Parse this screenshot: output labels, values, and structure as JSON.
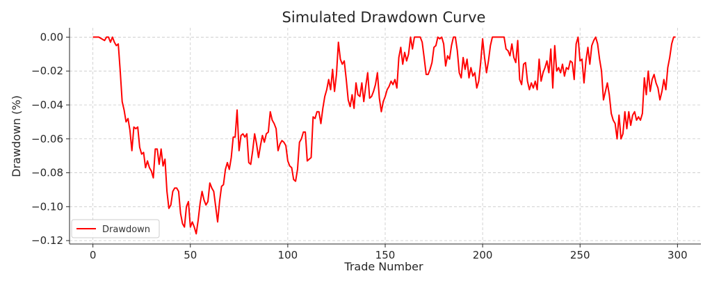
{
  "chart_data": {
    "type": "line",
    "title": "Simulated Drawdown Curve",
    "xlabel": "Trade Number",
    "ylabel": "Drawdown (%)",
    "xlim": [
      -12,
      312
    ],
    "ylim": [
      -0.122,
      0.0055
    ],
    "x_ticks": [
      0,
      50,
      100,
      150,
      200,
      250,
      300
    ],
    "x_tick_labels": [
      "0",
      "50",
      "100",
      "150",
      "200",
      "250",
      "300"
    ],
    "y_ticks": [
      0,
      -0.02,
      -0.04,
      -0.06,
      -0.08,
      -0.1,
      -0.12
    ],
    "y_tick_labels": [
      "0.00",
      "−0.02",
      "−0.04",
      "−0.06",
      "−0.08",
      "−0.10",
      "−0.12"
    ],
    "grid": true,
    "legend": {
      "position": "lower-left",
      "entries": [
        "Drawdown"
      ]
    },
    "series": [
      {
        "name": "Drawdown",
        "color": "#ff0000",
        "points": [
          [
            0,
            0
          ],
          [
            3,
            0
          ],
          [
            6,
            -0.002
          ],
          [
            7,
            0
          ],
          [
            8,
            0
          ],
          [
            9,
            -0.003
          ],
          [
            10,
            0
          ],
          [
            11,
            -0.003
          ],
          [
            12,
            -0.005
          ],
          [
            13,
            -0.004
          ],
          [
            14,
            -0.02
          ],
          [
            15,
            -0.038
          ],
          [
            16,
            -0.043
          ],
          [
            17,
            -0.05
          ],
          [
            18,
            -0.048
          ],
          [
            19,
            -0.055
          ],
          [
            20,
            -0.067
          ],
          [
            21,
            -0.053
          ],
          [
            22,
            -0.054
          ],
          [
            23,
            -0.053
          ],
          [
            24,
            -0.065
          ],
          [
            25,
            -0.069
          ],
          [
            26,
            -0.068
          ],
          [
            27,
            -0.077
          ],
          [
            28,
            -0.073
          ],
          [
            29,
            -0.077
          ],
          [
            30,
            -0.079
          ],
          [
            31,
            -0.083
          ],
          [
            32,
            -0.066
          ],
          [
            33,
            -0.066
          ],
          [
            34,
            -0.075
          ],
          [
            35,
            -0.066
          ],
          [
            36,
            -0.076
          ],
          [
            37,
            -0.072
          ],
          [
            38,
            -0.091
          ],
          [
            39,
            -0.101
          ],
          [
            40,
            -0.099
          ],
          [
            41,
            -0.091
          ],
          [
            42,
            -0.089
          ],
          [
            43,
            -0.089
          ],
          [
            44,
            -0.091
          ],
          [
            45,
            -0.104
          ],
          [
            46,
            -0.11
          ],
          [
            47,
            -0.112
          ],
          [
            48,
            -0.1
          ],
          [
            49,
            -0.097
          ],
          [
            50,
            -0.112
          ],
          [
            51,
            -0.109
          ],
          [
            52,
            -0.112
          ],
          [
            53,
            -0.116
          ],
          [
            54,
            -0.108
          ],
          [
            55,
            -0.098
          ],
          [
            56,
            -0.091
          ],
          [
            57,
            -0.096
          ],
          [
            58,
            -0.099
          ],
          [
            59,
            -0.097
          ],
          [
            60,
            -0.086
          ],
          [
            61,
            -0.089
          ],
          [
            62,
            -0.091
          ],
          [
            63,
            -0.1
          ],
          [
            64,
            -0.109
          ],
          [
            65,
            -0.097
          ],
          [
            66,
            -0.088
          ],
          [
            67,
            -0.087
          ],
          [
            68,
            -0.078
          ],
          [
            69,
            -0.074
          ],
          [
            70,
            -0.078
          ],
          [
            71,
            -0.071
          ],
          [
            72,
            -0.059
          ],
          [
            73,
            -0.059
          ],
          [
            74,
            -0.043
          ],
          [
            75,
            -0.067
          ],
          [
            76,
            -0.058
          ],
          [
            77,
            -0.057
          ],
          [
            78,
            -0.059
          ],
          [
            79,
            -0.057
          ],
          [
            80,
            -0.074
          ],
          [
            81,
            -0.075
          ],
          [
            82,
            -0.067
          ],
          [
            83,
            -0.057
          ],
          [
            84,
            -0.063
          ],
          [
            85,
            -0.071
          ],
          [
            86,
            -0.064
          ],
          [
            87,
            -0.058
          ],
          [
            88,
            -0.062
          ],
          [
            89,
            -0.057
          ],
          [
            90,
            -0.056
          ],
          [
            91,
            -0.044
          ],
          [
            92,
            -0.049
          ],
          [
            93,
            -0.051
          ],
          [
            94,
            -0.054
          ],
          [
            95,
            -0.067
          ],
          [
            96,
            -0.063
          ],
          [
            97,
            -0.061
          ],
          [
            98,
            -0.062
          ],
          [
            99,
            -0.064
          ],
          [
            100,
            -0.073
          ],
          [
            101,
            -0.076
          ],
          [
            102,
            -0.077
          ],
          [
            103,
            -0.084
          ],
          [
            104,
            -0.085
          ],
          [
            105,
            -0.078
          ],
          [
            106,
            -0.062
          ],
          [
            107,
            -0.06
          ],
          [
            108,
            -0.056
          ],
          [
            109,
            -0.056
          ],
          [
            110,
            -0.073
          ],
          [
            111,
            -0.072
          ],
          [
            112,
            -0.071
          ],
          [
            113,
            -0.047
          ],
          [
            114,
            -0.048
          ],
          [
            115,
            -0.044
          ],
          [
            116,
            -0.044
          ],
          [
            117,
            -0.051
          ],
          [
            118,
            -0.042
          ],
          [
            119,
            -0.035
          ],
          [
            120,
            -0.031
          ],
          [
            121,
            -0.025
          ],
          [
            122,
            -0.031
          ],
          [
            123,
            -0.019
          ],
          [
            124,
            -0.032
          ],
          [
            125,
            -0.022
          ],
          [
            126,
            -0.003
          ],
          [
            127,
            -0.013
          ],
          [
            128,
            -0.016
          ],
          [
            129,
            -0.014
          ],
          [
            130,
            -0.025
          ],
          [
            131,
            -0.037
          ],
          [
            132,
            -0.041
          ],
          [
            133,
            -0.034
          ],
          [
            134,
            -0.042
          ],
          [
            135,
            -0.027
          ],
          [
            136,
            -0.034
          ],
          [
            137,
            -0.035
          ],
          [
            138,
            -0.027
          ],
          [
            139,
            -0.038
          ],
          [
            140,
            -0.029
          ],
          [
            141,
            -0.021
          ],
          [
            142,
            -0.036
          ],
          [
            143,
            -0.035
          ],
          [
            144,
            -0.032
          ],
          [
            145,
            -0.028
          ],
          [
            146,
            -0.021
          ],
          [
            147,
            -0.036
          ],
          [
            148,
            -0.044
          ],
          [
            149,
            -0.038
          ],
          [
            150,
            -0.035
          ],
          [
            151,
            -0.031
          ],
          [
            152,
            -0.029
          ],
          [
            153,
            -0.026
          ],
          [
            154,
            -0.028
          ],
          [
            155,
            -0.025
          ],
          [
            156,
            -0.03
          ],
          [
            157,
            -0.012
          ],
          [
            158,
            -0.006
          ],
          [
            159,
            -0.016
          ],
          [
            160,
            -0.009
          ],
          [
            161,
            -0.014
          ],
          [
            162,
            -0.01
          ],
          [
            163,
            0
          ],
          [
            164,
            -0.007
          ],
          [
            165,
            0
          ],
          [
            166,
            0
          ],
          [
            167,
            0
          ],
          [
            168,
            0
          ],
          [
            169,
            -0.003
          ],
          [
            170,
            -0.012
          ],
          [
            171,
            -0.022
          ],
          [
            172,
            -0.022
          ],
          [
            173,
            -0.019
          ],
          [
            174,
            -0.015
          ],
          [
            175,
            -0.006
          ],
          [
            176,
            -0.005
          ],
          [
            177,
            0
          ],
          [
            178,
            -0.001
          ],
          [
            179,
            0
          ],
          [
            180,
            -0.004
          ],
          [
            181,
            -0.017
          ],
          [
            182,
            -0.011
          ],
          [
            183,
            -0.013
          ],
          [
            184,
            -0.005
          ],
          [
            185,
            0
          ],
          [
            186,
            0
          ],
          [
            187,
            -0.008
          ],
          [
            188,
            -0.021
          ],
          [
            189,
            -0.024
          ],
          [
            190,
            -0.012
          ],
          [
            191,
            -0.019
          ],
          [
            192,
            -0.013
          ],
          [
            193,
            -0.024
          ],
          [
            194,
            -0.018
          ],
          [
            195,
            -0.023
          ],
          [
            196,
            -0.021
          ],
          [
            197,
            -0.03
          ],
          [
            198,
            -0.026
          ],
          [
            199,
            -0.015
          ],
          [
            200,
            -0.001
          ],
          [
            201,
            -0.012
          ],
          [
            202,
            -0.021
          ],
          [
            203,
            -0.014
          ],
          [
            204,
            -0.005
          ],
          [
            205,
            0
          ],
          [
            206,
            0
          ],
          [
            207,
            0
          ],
          [
            208,
            0
          ],
          [
            209,
            0
          ],
          [
            210,
            0
          ],
          [
            211,
            0
          ],
          [
            212,
            -0.007
          ],
          [
            213,
            -0.008
          ],
          [
            214,
            -0.011
          ],
          [
            215,
            -0.004
          ],
          [
            216,
            -0.012
          ],
          [
            217,
            -0.015
          ],
          [
            218,
            -0.002
          ],
          [
            219,
            -0.025
          ],
          [
            220,
            -0.028
          ],
          [
            221,
            -0.016
          ],
          [
            222,
            -0.015
          ],
          [
            223,
            -0.026
          ],
          [
            224,
            -0.031
          ],
          [
            225,
            -0.027
          ],
          [
            226,
            -0.03
          ],
          [
            227,
            -0.026
          ],
          [
            228,
            -0.031
          ],
          [
            229,
            -0.013
          ],
          [
            230,
            -0.026
          ],
          [
            231,
            -0.021
          ],
          [
            232,
            -0.018
          ],
          [
            233,
            -0.014
          ],
          [
            234,
            -0.021
          ],
          [
            235,
            -0.007
          ],
          [
            236,
            -0.03
          ],
          [
            237,
            -0.005
          ],
          [
            238,
            -0.02
          ],
          [
            239,
            -0.018
          ],
          [
            240,
            -0.021
          ],
          [
            241,
            -0.016
          ],
          [
            242,
            -0.023
          ],
          [
            243,
            -0.018
          ],
          [
            244,
            -0.019
          ],
          [
            245,
            -0.014
          ],
          [
            246,
            -0.015
          ],
          [
            247,
            -0.025
          ],
          [
            248,
            -0.004
          ],
          [
            249,
            0
          ],
          [
            250,
            -0.014
          ],
          [
            251,
            -0.013
          ],
          [
            252,
            -0.027
          ],
          [
            253,
            -0.014
          ],
          [
            254,
            -0.006
          ],
          [
            255,
            -0.016
          ],
          [
            256,
            -0.005
          ],
          [
            257,
            -0.002
          ],
          [
            258,
            0
          ],
          [
            259,
            -0.004
          ],
          [
            260,
            -0.013
          ],
          [
            261,
            -0.02
          ],
          [
            262,
            -0.037
          ],
          [
            263,
            -0.032
          ],
          [
            264,
            -0.027
          ],
          [
            265,
            -0.034
          ],
          [
            266,
            -0.045
          ],
          [
            267,
            -0.049
          ],
          [
            268,
            -0.051
          ],
          [
            269,
            -0.06
          ],
          [
            270,
            -0.046
          ],
          [
            271,
            -0.06
          ],
          [
            272,
            -0.057
          ],
          [
            273,
            -0.044
          ],
          [
            274,
            -0.054
          ],
          [
            275,
            -0.044
          ],
          [
            276,
            -0.052
          ],
          [
            277,
            -0.046
          ],
          [
            278,
            -0.044
          ],
          [
            279,
            -0.049
          ],
          [
            280,
            -0.047
          ],
          [
            281,
            -0.049
          ],
          [
            282,
            -0.045
          ],
          [
            283,
            -0.024
          ],
          [
            284,
            -0.034
          ],
          [
            285,
            -0.02
          ],
          [
            286,
            -0.032
          ],
          [
            287,
            -0.025
          ],
          [
            288,
            -0.022
          ],
          [
            289,
            -0.027
          ],
          [
            290,
            -0.03
          ],
          [
            291,
            -0.037
          ],
          [
            292,
            -0.032
          ],
          [
            293,
            -0.025
          ],
          [
            294,
            -0.031
          ],
          [
            295,
            -0.018
          ],
          [
            296,
            -0.012
          ],
          [
            297,
            -0.004
          ],
          [
            298,
            0
          ],
          [
            299,
            0
          ]
        ]
      }
    ]
  }
}
